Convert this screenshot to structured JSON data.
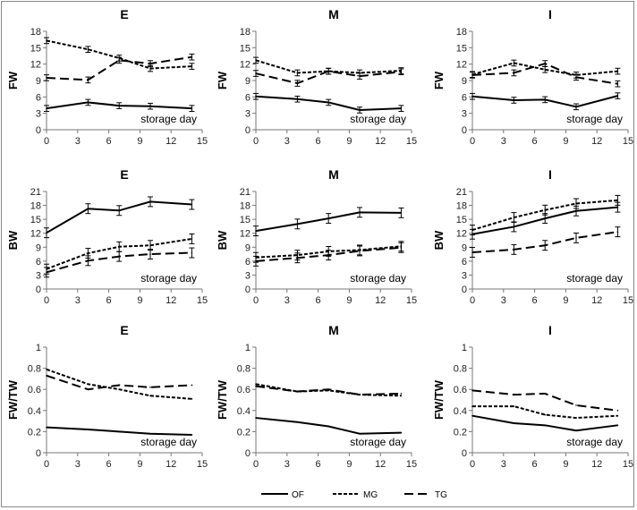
{
  "series_names": [
    "OF",
    "MG",
    "TG"
  ],
  "chart_data": [
    {
      "type": "line",
      "title": "E",
      "ylabel": "FW",
      "annotation": "storage day",
      "ylim": [
        0,
        18
      ],
      "yticks": [
        0,
        3,
        6,
        9,
        12,
        15,
        18
      ],
      "xlim": [
        0,
        15
      ],
      "xticks": [
        0,
        3,
        6,
        9,
        12,
        15
      ],
      "x": [
        0,
        4,
        7,
        10,
        14
      ],
      "series": [
        {
          "name": "OF",
          "values": [
            3.9,
            5.0,
            4.4,
            4.3,
            3.9
          ]
        },
        {
          "name": "MG",
          "values": [
            16.3,
            14.7,
            13.1,
            11.2,
            11.6
          ]
        },
        {
          "name": "TG",
          "values": [
            9.5,
            9.1,
            12.7,
            12.1,
            13.3
          ]
        }
      ]
    },
    {
      "type": "line",
      "title": "M",
      "ylabel": "FW",
      "annotation": "storage day",
      "ylim": [
        0,
        18
      ],
      "yticks": [
        0,
        3,
        6,
        9,
        12,
        15,
        18
      ],
      "xlim": [
        0,
        15
      ],
      "xticks": [
        0,
        3,
        6,
        9,
        12,
        15
      ],
      "x": [
        0,
        4,
        7,
        10,
        14
      ],
      "series": [
        {
          "name": "OF",
          "values": [
            6.1,
            5.6,
            5.0,
            3.6,
            3.9
          ]
        },
        {
          "name": "MG",
          "values": [
            12.7,
            10.4,
            10.7,
            10.4,
            10.8
          ]
        },
        {
          "name": "TG",
          "values": [
            10.3,
            8.5,
            10.7,
            9.8,
            10.6
          ]
        }
      ]
    },
    {
      "type": "line",
      "title": "I",
      "ylabel": "FW",
      "annotation": "storage day",
      "ylim": [
        0,
        18
      ],
      "yticks": [
        0,
        3,
        6,
        9,
        12,
        15,
        18
      ],
      "xlim": [
        0,
        15
      ],
      "xticks": [
        0,
        3,
        6,
        9,
        12,
        15
      ],
      "x": [
        0,
        4,
        7,
        10,
        14
      ],
      "series": [
        {
          "name": "OF",
          "values": [
            6.1,
            5.4,
            5.5,
            4.2,
            6.2
          ]
        },
        {
          "name": "MG",
          "values": [
            10.1,
            12.2,
            11.0,
            10.0,
            10.7
          ]
        },
        {
          "name": "TG",
          "values": [
            10.0,
            10.4,
            12.1,
            9.6,
            8.4
          ]
        }
      ]
    },
    {
      "type": "line",
      "title": "E",
      "ylabel": "BW",
      "annotation": "storage day",
      "ylim": [
        0,
        21
      ],
      "yticks": [
        0,
        3,
        6,
        9,
        12,
        15,
        18,
        21
      ],
      "xlim": [
        0,
        15
      ],
      "xticks": [
        0,
        3,
        6,
        9,
        12,
        15
      ],
      "x": [
        0,
        4,
        7,
        10,
        14
      ],
      "series": [
        {
          "name": "OF",
          "values": [
            12.1,
            17.3,
            16.9,
            18.8,
            18.2
          ]
        },
        {
          "name": "MG",
          "values": [
            4.3,
            7.7,
            9.1,
            9.4,
            10.8
          ]
        },
        {
          "name": "TG",
          "values": [
            3.6,
            6.1,
            7.0,
            7.5,
            7.8
          ]
        }
      ]
    },
    {
      "type": "line",
      "title": "M",
      "ylabel": "BW",
      "annotation": "storage day",
      "ylim": [
        0,
        21
      ],
      "yticks": [
        0,
        3,
        6,
        9,
        12,
        15,
        18,
        21
      ],
      "xlim": [
        0,
        15
      ],
      "xticks": [
        0,
        3,
        6,
        9,
        12,
        15
      ],
      "x": [
        0,
        4,
        7,
        10,
        14
      ],
      "series": [
        {
          "name": "OF",
          "values": [
            12.5,
            14.0,
            15.2,
            16.5,
            16.4
          ]
        },
        {
          "name": "MG",
          "values": [
            6.8,
            7.3,
            8.1,
            8.4,
            9.2
          ]
        },
        {
          "name": "TG",
          "values": [
            6.0,
            6.7,
            7.3,
            8.2,
            8.9
          ]
        }
      ]
    },
    {
      "type": "line",
      "title": "I",
      "ylabel": "BW",
      "annotation": "storage day",
      "ylim": [
        0,
        21
      ],
      "yticks": [
        0,
        3,
        6,
        9,
        12,
        15,
        18,
        21
      ],
      "xlim": [
        0,
        15
      ],
      "xticks": [
        0,
        3,
        6,
        9,
        12,
        15
      ],
      "x": [
        0,
        4,
        7,
        10,
        14
      ],
      "series": [
        {
          "name": "OF",
          "values": [
            11.8,
            13.4,
            15.2,
            16.8,
            17.6
          ]
        },
        {
          "name": "MG",
          "values": [
            12.7,
            15.4,
            17.0,
            18.4,
            19.1
          ]
        },
        {
          "name": "TG",
          "values": [
            7.9,
            8.5,
            9.4,
            11.0,
            12.3
          ]
        }
      ]
    },
    {
      "type": "line",
      "title": "E",
      "ylabel": "FW/TW",
      "annotation": "storage day",
      "ylim": [
        0,
        1
      ],
      "yticks": [
        0,
        0.2,
        0.4,
        0.6,
        0.8,
        1
      ],
      "xlim": [
        0,
        15
      ],
      "xticks": [
        0,
        3,
        6,
        9,
        12,
        15
      ],
      "x": [
        0,
        4,
        7,
        10,
        14
      ],
      "series": [
        {
          "name": "OF",
          "values": [
            0.24,
            0.22,
            0.2,
            0.18,
            0.17
          ]
        },
        {
          "name": "MG",
          "values": [
            0.79,
            0.65,
            0.6,
            0.54,
            0.51
          ]
        },
        {
          "name": "TG",
          "values": [
            0.73,
            0.6,
            0.64,
            0.62,
            0.64
          ]
        }
      ]
    },
    {
      "type": "line",
      "title": "M",
      "ylabel": "FW/TW",
      "annotation": "storage day",
      "ylim": [
        0,
        1
      ],
      "yticks": [
        0,
        0.2,
        0.4,
        0.6,
        0.8,
        1
      ],
      "xlim": [
        0,
        15
      ],
      "xticks": [
        0,
        3,
        6,
        9,
        12,
        15
      ],
      "x": [
        0,
        4,
        7,
        10,
        14
      ],
      "series": [
        {
          "name": "OF",
          "values": [
            0.33,
            0.29,
            0.25,
            0.18,
            0.19
          ]
        },
        {
          "name": "MG",
          "values": [
            0.65,
            0.58,
            0.59,
            0.55,
            0.54
          ]
        },
        {
          "name": "TG",
          "values": [
            0.63,
            0.58,
            0.6,
            0.55,
            0.56
          ]
        }
      ]
    },
    {
      "type": "line",
      "title": "I",
      "ylabel": "FW/TW",
      "annotation": "storage day",
      "ylim": [
        0,
        1
      ],
      "yticks": [
        0,
        0.2,
        0.4,
        0.6,
        0.8,
        1
      ],
      "xlim": [
        0,
        15
      ],
      "xticks": [
        0,
        3,
        6,
        9,
        12,
        15
      ],
      "x": [
        0,
        4,
        7,
        10,
        14
      ],
      "series": [
        {
          "name": "OF",
          "values": [
            0.35,
            0.28,
            0.26,
            0.21,
            0.26
          ]
        },
        {
          "name": "MG",
          "values": [
            0.44,
            0.44,
            0.36,
            0.33,
            0.35
          ]
        },
        {
          "name": "TG",
          "values": [
            0.59,
            0.55,
            0.56,
            0.45,
            0.4
          ]
        }
      ]
    }
  ]
}
